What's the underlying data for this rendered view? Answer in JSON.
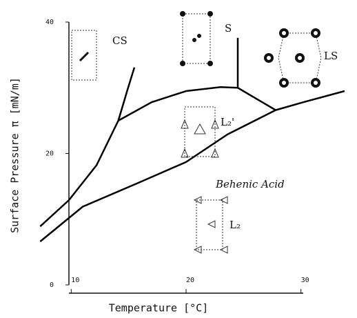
{
  "chart_data": {
    "type": "line",
    "x_label": "Temperature [°C]",
    "y_label": "Surface Pressure π [mN/m]",
    "xlim": [
      9.8,
      30.2
    ],
    "ylim": [
      0,
      40
    ],
    "xticks": [
      10,
      20,
      30
    ],
    "yticks": [
      0,
      20,
      40
    ],
    "annotations": [
      "CS",
      "S",
      "LS",
      "L₂'",
      "Behenic Acid",
      "L₂"
    ],
    "series": [
      {
        "color": "#000000",
        "x": [
          7.3,
          9.8,
          12.2,
          14.1,
          14.9,
          15.5
        ],
        "values": [
          8.9,
          12.9,
          18.2,
          25.0,
          29.7,
          33.1
        ]
      },
      {
        "color": "#000000",
        "x": [
          14.1,
          17.0,
          20.0,
          23.0,
          24.5
        ],
        "values": [
          25.0,
          27.8,
          29.5,
          30.1,
          30.0
        ]
      },
      {
        "color": "#000000",
        "x": [
          24.5,
          24.5
        ],
        "values": [
          30.0,
          37.6
        ]
      },
      {
        "color": "#000000",
        "x": [
          24.5,
          27.8
        ],
        "values": [
          30.0,
          26.6
        ]
      },
      {
        "color": "#000000",
        "x": [
          27.8,
          30.2,
          33.8
        ],
        "values": [
          26.6,
          27.8,
          29.5
        ]
      },
      {
        "color": "#000000",
        "x": [
          7.3,
          11.0,
          15.8,
          20.0,
          23.6,
          27.8
        ],
        "values": [
          6.6,
          11.9,
          15.5,
          18.7,
          22.9,
          26.6
        ]
      }
    ]
  }
}
